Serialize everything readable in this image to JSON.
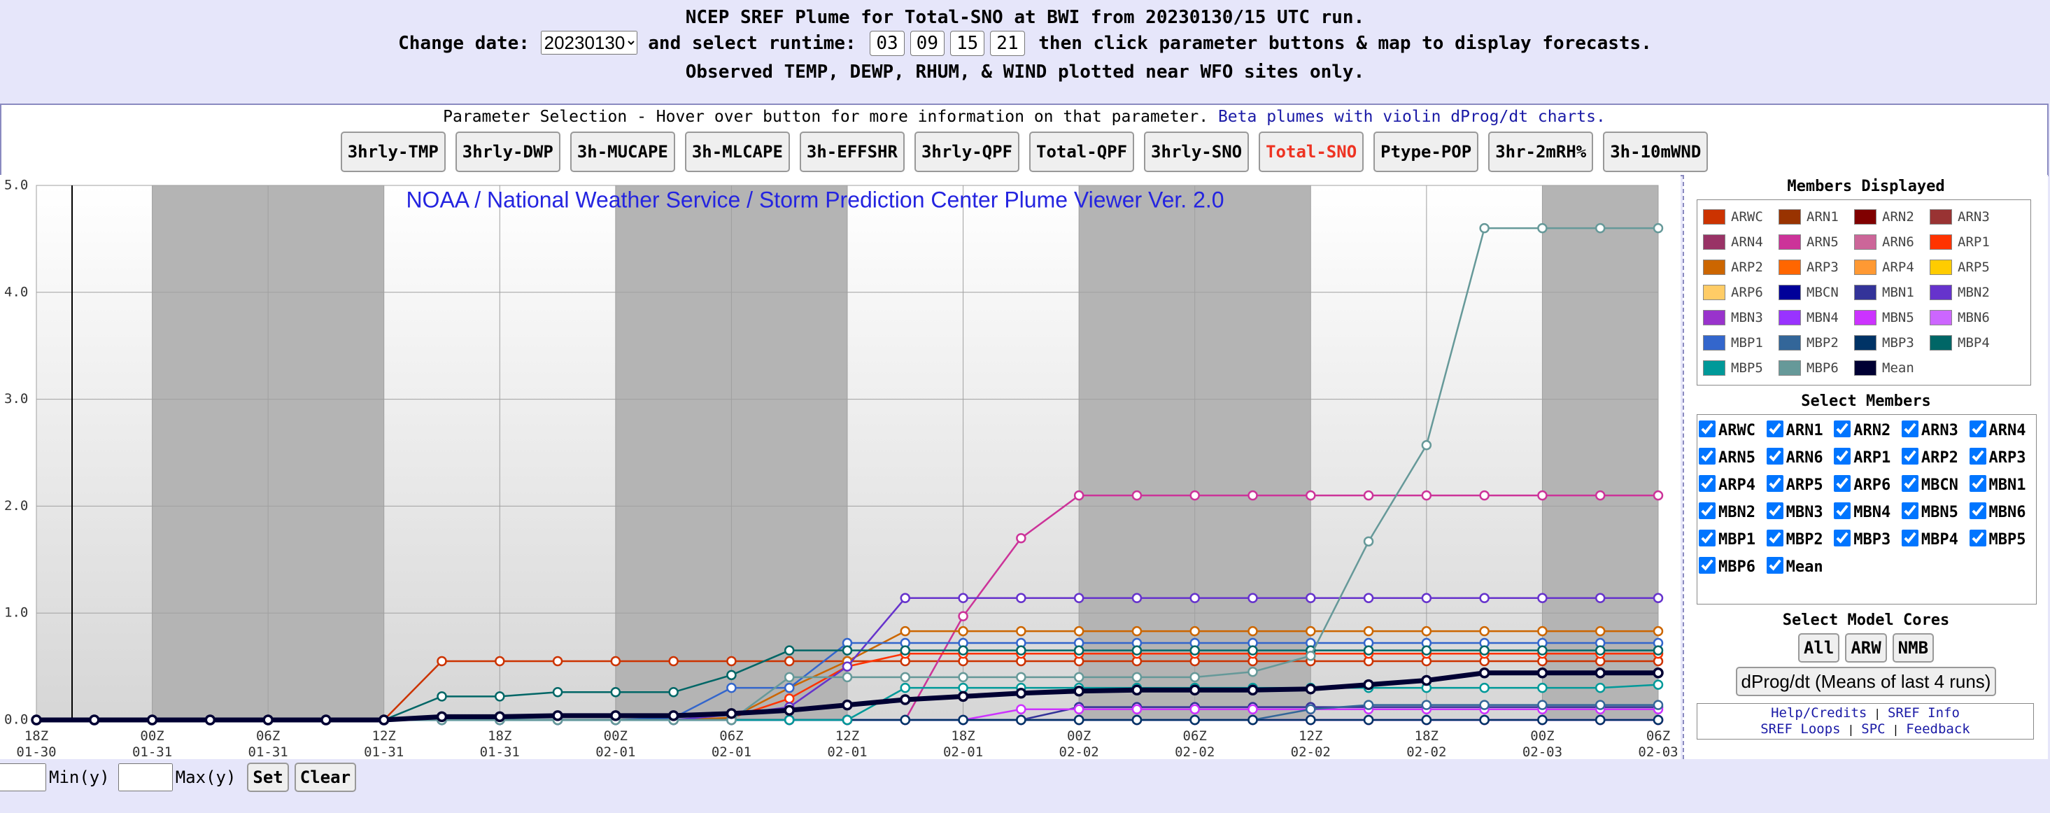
{
  "header": {
    "title": "NCEP SREF Plume for Total-SNO at BWI from 20230130/15 UTC run.",
    "change_date": "Change date:",
    "date_value": "20230130",
    "select_runtime": "and select runtime:",
    "runtimes": [
      "03",
      "09",
      "15",
      "21"
    ],
    "instructions": "then click parameter buttons & map to display forecasts.",
    "observed": "Observed TEMP, DEWP, RHUM, & WIND plotted near WFO sites only."
  },
  "parameters": {
    "intro": "Parameter Selection - Hover over button for more information on that parameter.",
    "beta_link": "Beta plumes with violin dProg/dt charts.",
    "buttons": [
      "3hrly-TMP",
      "3hrly-DWP",
      "3h-MUCAPE",
      "3h-MLCAPE",
      "3h-EFFSHR",
      "3hrly-QPF",
      "Total-QPF",
      "3hrly-SNO",
      "Total-SNO",
      "Ptype-POP",
      "3hr-2mRH%",
      "3h-10mWND"
    ],
    "selected_index": 8
  },
  "chart_data": {
    "type": "line",
    "title": "NOAA / National Weather Service / Storm Prediction Center Plume Viewer Ver. 2.0",
    "categories": [
      "18Z 01-30",
      null,
      "00Z 01-31",
      null,
      "06Z 01-31",
      null,
      "12Z 01-31",
      null,
      "18Z 01-31",
      null,
      "00Z 02-01",
      null,
      "06Z 02-01",
      null,
      "12Z 02-01",
      null,
      "18Z 02-01",
      null,
      "00Z 02-02",
      null,
      "06Z 02-02",
      null,
      "12Z 02-02",
      null,
      "18Z 02-02",
      null,
      "00Z 02-03",
      null,
      "06Z 02-03"
    ],
    "ylim": [
      0,
      5
    ],
    "yticks": [
      {
        "value": 0,
        "label": "0.0"
      },
      {
        "value": 1,
        "label": "1.0"
      },
      {
        "value": 2,
        "label": "2.0"
      },
      {
        "value": 3,
        "label": "3.0"
      },
      {
        "value": 4,
        "label": "4.0"
      },
      {
        "value": 5,
        "label": "5.0"
      }
    ],
    "grid": true,
    "series": [
      {
        "name": "ARWC",
        "color": "#cc3300",
        "values": [
          0,
          0,
          0,
          0,
          0,
          0,
          0,
          0.55,
          0.55,
          0.55,
          0.55,
          0.55,
          0.55,
          0.55,
          0.55,
          0.55,
          0.55,
          0.55,
          0.55,
          0.55,
          0.55,
          0.55,
          0.55,
          0.55,
          0.55,
          0.55,
          0.55,
          0.55,
          0.55
        ]
      },
      {
        "name": "ARN1",
        "color": "#993300",
        "values": [
          0,
          0,
          0,
          0,
          0,
          0,
          0,
          0,
          0,
          0,
          0,
          0,
          0,
          0,
          0,
          0,
          0,
          0,
          0,
          0,
          0,
          0,
          0,
          0,
          0,
          0,
          0,
          0,
          0
        ]
      },
      {
        "name": "ARN2",
        "color": "#800000",
        "values": [
          0,
          0,
          0,
          0,
          0,
          0,
          0,
          0,
          0,
          0,
          0,
          0,
          0,
          0,
          0,
          0,
          0,
          0,
          0,
          0,
          0,
          0,
          0,
          0,
          0,
          0,
          0,
          0,
          0
        ]
      },
      {
        "name": "ARN3",
        "color": "#993333",
        "values": [
          0,
          0,
          0,
          0,
          0,
          0,
          0,
          0,
          0,
          0,
          0,
          0,
          0,
          0,
          0,
          0,
          0,
          0,
          0,
          0,
          0,
          0,
          0,
          0,
          0,
          0,
          0,
          0,
          0
        ]
      },
      {
        "name": "ARN4",
        "color": "#993366",
        "values": [
          0,
          0,
          0,
          0,
          0,
          0,
          0,
          0,
          0,
          0,
          0,
          0,
          0,
          0,
          0,
          0,
          0,
          0,
          0,
          0,
          0,
          0,
          0,
          0,
          0,
          0,
          0,
          0,
          0
        ]
      },
      {
        "name": "ARN5",
        "color": "#cc3399",
        "values": [
          0,
          0,
          0,
          0,
          0,
          0,
          0,
          0,
          0,
          0,
          0,
          0,
          0,
          0,
          0,
          0,
          0.97,
          1.7,
          2.1,
          2.1,
          2.1,
          2.1,
          2.1,
          2.1,
          2.1,
          2.1,
          2.1,
          2.1,
          2.1
        ]
      },
      {
        "name": "ARN6",
        "color": "#cc6699",
        "values": [
          0,
          0,
          0,
          0,
          0,
          0,
          0,
          0,
          0,
          0,
          0,
          0,
          0,
          0,
          0,
          0,
          0,
          0,
          0,
          0,
          0,
          0,
          0,
          0,
          0,
          0,
          0,
          0,
          0
        ]
      },
      {
        "name": "ARP1",
        "color": "#ff3300",
        "values": [
          0,
          0,
          0,
          0,
          0,
          0,
          0,
          0,
          0,
          0,
          0,
          0,
          0.02,
          0.2,
          0.5,
          0.62,
          0.62,
          0.62,
          0.62,
          0.62,
          0.62,
          0.62,
          0.62,
          0.62,
          0.62,
          0.62,
          0.62,
          0.62,
          0.62
        ]
      },
      {
        "name": "ARP2",
        "color": "#cc6600",
        "values": [
          0,
          0,
          0,
          0,
          0,
          0,
          0,
          0,
          0,
          0,
          0,
          0,
          0.02,
          0.3,
          0.55,
          0.83,
          0.83,
          0.83,
          0.83,
          0.83,
          0.83,
          0.83,
          0.83,
          0.83,
          0.83,
          0.83,
          0.83,
          0.83,
          0.83
        ]
      },
      {
        "name": "ARP3",
        "color": "#ff6600",
        "values": [
          0,
          0,
          0,
          0,
          0,
          0,
          0,
          0,
          0,
          0,
          0,
          0,
          0,
          0,
          0,
          0,
          0,
          0,
          0,
          0,
          0,
          0,
          0,
          0,
          0,
          0,
          0,
          0,
          0
        ]
      },
      {
        "name": "ARP4",
        "color": "#ff9933",
        "values": [
          0,
          0,
          0,
          0,
          0,
          0,
          0,
          0,
          0,
          0,
          0,
          0,
          0,
          0,
          0,
          0,
          0,
          0,
          0,
          0,
          0,
          0,
          0,
          0,
          0,
          0,
          0,
          0,
          0
        ]
      },
      {
        "name": "ARP5",
        "color": "#ffcc00",
        "values": [
          0,
          0,
          0,
          0,
          0,
          0,
          0,
          0,
          0,
          0,
          0,
          0,
          0,
          0,
          0,
          0,
          0,
          0,
          0,
          0,
          0,
          0,
          0,
          0,
          0,
          0,
          0,
          0,
          0
        ]
      },
      {
        "name": "ARP6",
        "color": "#ffcc66",
        "values": [
          0,
          0,
          0,
          0,
          0,
          0,
          0,
          0,
          0,
          0,
          0,
          0,
          0,
          0,
          0,
          0,
          0,
          0,
          0,
          0,
          0,
          0,
          0,
          0,
          0,
          0,
          0,
          0,
          0
        ]
      },
      {
        "name": "MBCN",
        "color": "#000099",
        "values": [
          0,
          0,
          0,
          0,
          0,
          0,
          0,
          0,
          0,
          0,
          0,
          0,
          0,
          0,
          0,
          0,
          0,
          0,
          0,
          0,
          0,
          0,
          0,
          0,
          0,
          0,
          0,
          0,
          0
        ]
      },
      {
        "name": "MBN1",
        "color": "#333399",
        "values": [
          0,
          0,
          0,
          0,
          0,
          0,
          0,
          0,
          0,
          0,
          0,
          0,
          0,
          0,
          0,
          0,
          0,
          0,
          0.12,
          0.12,
          0.12,
          0.12,
          0.12,
          0.12,
          0.12,
          0.12,
          0.12,
          0.12,
          0.12
        ]
      },
      {
        "name": "MBN2",
        "color": "#6633cc",
        "values": [
          0,
          0,
          0,
          0,
          0,
          0,
          0,
          0,
          0,
          0,
          0,
          0,
          0.05,
          0.12,
          0.5,
          1.14,
          1.14,
          1.14,
          1.14,
          1.14,
          1.14,
          1.14,
          1.14,
          1.14,
          1.14,
          1.14,
          1.14,
          1.14,
          1.14
        ]
      },
      {
        "name": "MBN3",
        "color": "#9933cc",
        "values": [
          0,
          0,
          0,
          0,
          0,
          0,
          0,
          0,
          0,
          0,
          0,
          0,
          0,
          0,
          0,
          0,
          0,
          0,
          0,
          0,
          0,
          0,
          0,
          0,
          0,
          0,
          0,
          0,
          0
        ]
      },
      {
        "name": "MBN4",
        "color": "#9933ff",
        "values": [
          0,
          0,
          0,
          0,
          0,
          0,
          0,
          0,
          0,
          0,
          0,
          0,
          0,
          0,
          0,
          0,
          0,
          0,
          0,
          0,
          0,
          0,
          0,
          0,
          0,
          0,
          0,
          0,
          0
        ]
      },
      {
        "name": "MBN5",
        "color": "#cc33ff",
        "values": [
          0,
          0,
          0,
          0,
          0,
          0,
          0,
          0,
          0,
          0,
          0,
          0,
          0,
          0,
          0,
          0,
          0,
          0.1,
          0.1,
          0.1,
          0.1,
          0.1,
          0.1,
          0.1,
          0.1,
          0.1,
          0.1,
          0.1,
          0.1
        ]
      },
      {
        "name": "MBN6",
        "color": "#cc66ff",
        "values": [
          0,
          0,
          0,
          0,
          0,
          0,
          0,
          0,
          0,
          0,
          0,
          0,
          0,
          0,
          0,
          0,
          0,
          0,
          0,
          0,
          0,
          0,
          0,
          0,
          0,
          0,
          0,
          0,
          0
        ]
      },
      {
        "name": "MBP1",
        "color": "#3366cc",
        "values": [
          0,
          0,
          0,
          0,
          0,
          0,
          0,
          0,
          0,
          0,
          0,
          0.02,
          0.3,
          0.3,
          0.72,
          0.72,
          0.72,
          0.72,
          0.72,
          0.72,
          0.72,
          0.72,
          0.72,
          0.72,
          0.72,
          0.72,
          0.72,
          0.72,
          0.72
        ]
      },
      {
        "name": "MBP2",
        "color": "#336699",
        "values": [
          0,
          0,
          0,
          0,
          0,
          0,
          0,
          0,
          0,
          0,
          0,
          0,
          0,
          0,
          0,
          0,
          0,
          0,
          0,
          0,
          0,
          0,
          0.1,
          0.14,
          0.14,
          0.14,
          0.14,
          0.14,
          0.14
        ]
      },
      {
        "name": "MBP3",
        "color": "#003366",
        "values": [
          0,
          0,
          0,
          0,
          0,
          0,
          0,
          0,
          0,
          0,
          0,
          0,
          0,
          0,
          0,
          0,
          0,
          0,
          0,
          0,
          0,
          0,
          0,
          0,
          0,
          0,
          0,
          0,
          0
        ]
      },
      {
        "name": "MBP4",
        "color": "#006666",
        "values": [
          0,
          0,
          0,
          0,
          0,
          0,
          0,
          0.22,
          0.22,
          0.26,
          0.26,
          0.26,
          0.42,
          0.65,
          0.65,
          0.65,
          0.65,
          0.65,
          0.65,
          0.65,
          0.65,
          0.65,
          0.65,
          0.65,
          0.65,
          0.65,
          0.65,
          0.65,
          0.65
        ]
      },
      {
        "name": "MBP5",
        "color": "#009999",
        "values": [
          0,
          0,
          0,
          0,
          0,
          0,
          0,
          0,
          0,
          0,
          0,
          0,
          0,
          0,
          0,
          0.3,
          0.3,
          0.3,
          0.3,
          0.3,
          0.3,
          0.3,
          0.3,
          0.3,
          0.3,
          0.3,
          0.3,
          0.3,
          0.33
        ]
      },
      {
        "name": "MBP6",
        "color": "#669999",
        "values": [
          0,
          0,
          0,
          0,
          0,
          0,
          0,
          0,
          0,
          0,
          0,
          0,
          0,
          0.4,
          0.4,
          0.4,
          0.4,
          0.4,
          0.4,
          0.4,
          0.4,
          0.45,
          0.6,
          1.67,
          2.57,
          4.6,
          4.6,
          4.6,
          4.6
        ]
      },
      {
        "name": "Mean",
        "color": "#000033",
        "values": [
          0,
          0,
          0,
          0,
          0,
          0,
          0,
          0.03,
          0.03,
          0.04,
          0.04,
          0.04,
          0.06,
          0.09,
          0.14,
          0.19,
          0.22,
          0.25,
          0.27,
          0.28,
          0.28,
          0.28,
          0.29,
          0.33,
          0.37,
          0.44,
          0.44,
          0.44,
          0.44
        ]
      }
    ]
  },
  "panel": {
    "members_displayed": "Members Displayed",
    "select_members": "Select Members",
    "select_cores": "Select Model Cores",
    "cores": [
      "All",
      "ARW",
      "NMB"
    ],
    "dprog": "dProg/dt (Means of last 4 runs)",
    "links_row1": [
      "Help/Credits",
      "SREF Info"
    ],
    "links_row2": [
      "SREF Loops",
      "SPC",
      "Feedback"
    ]
  },
  "bottom": {
    "min_label": "Min(y)",
    "max_label": "Max(y)",
    "set": "Set",
    "clear": "Clear"
  }
}
